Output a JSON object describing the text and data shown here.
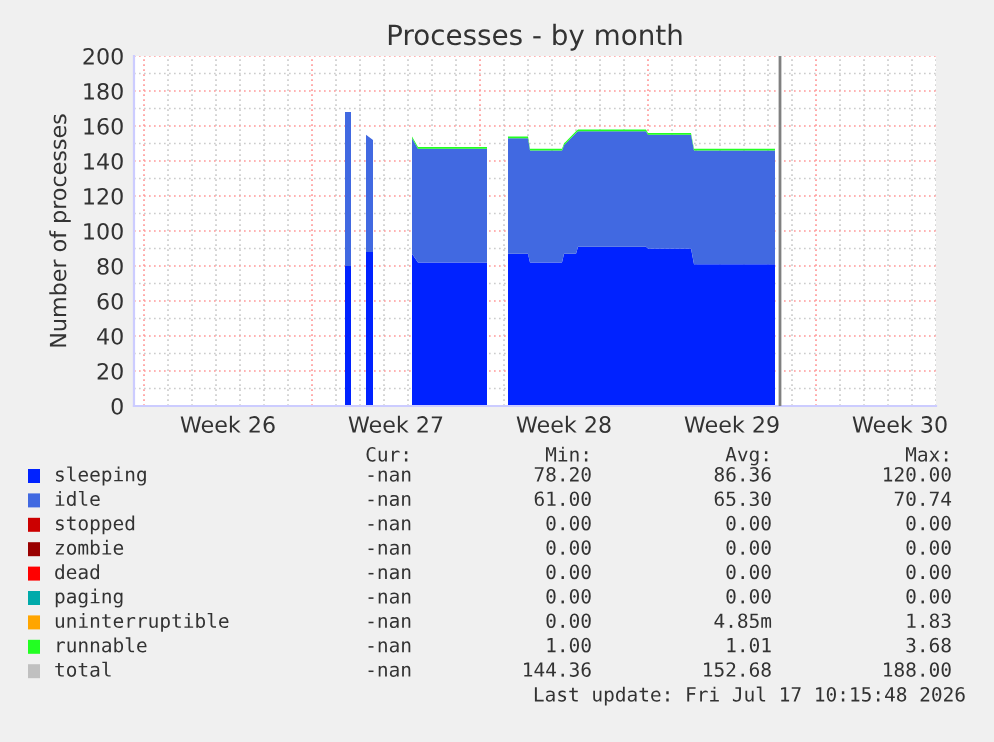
{
  "chart_data": {
    "type": "area",
    "stacked": true,
    "title": "Processes - by month",
    "ylabel": "Number of processes",
    "x": [
      "2026-06-30T09:00",
      "2026-06-30T15:00",
      "2026-06-30T22:00",
      "2026-07-01T06:00",
      "2026-07-01T13:00",
      "2026-07-01T22:00",
      "2026-07-03T04:00",
      "2026-07-03T10:00",
      "2026-07-06T07:00",
      "2026-07-06T17:00",
      "2026-07-07T04:00",
      "2026-07-08T00:00",
      "2026-07-08T02:00",
      "2026-07-09T10:00",
      "2026-07-09T12:00",
      "2026-07-10T00:00",
      "2026-07-10T02:00",
      "2026-07-12T22:00",
      "2026-07-13T00:00",
      "2026-07-14T19:00",
      "2026-07-14T22:00",
      "2026-07-18T07:00"
    ],
    "xlim": [
      "2026-06-21T14:00",
      "2026-07-25T00:00"
    ],
    "xticks": [
      {
        "value": "2026-06-25T12:00",
        "label": "Week 26"
      },
      {
        "value": "2026-07-02T12:00",
        "label": "Week 27"
      },
      {
        "value": "2026-07-09T12:00",
        "label": "Week 28"
      },
      {
        "value": "2026-07-16T12:00",
        "label": "Week 29"
      },
      {
        "value": "2026-07-23T12:00",
        "label": "Week 30"
      }
    ],
    "ylim": [
      0,
      200
    ],
    "yticks": [
      0,
      20,
      40,
      60,
      80,
      100,
      120,
      140,
      160,
      180,
      200
    ],
    "grid": true,
    "legend": "bottom",
    "series": [
      {
        "name": "sleeping",
        "color": "#0022ff",
        "values": [
          80,
          80,
          null,
          88,
          88,
          null,
          87,
          82,
          82,
          null,
          87,
          87,
          82,
          82,
          87,
          87,
          91,
          91,
          90,
          90,
          81,
          81
        ]
      },
      {
        "name": "idle",
        "color": "#4169e1",
        "values": [
          88,
          88,
          null,
          67,
          64,
          null,
          66,
          65,
          65,
          null,
          66,
          66,
          64,
          64,
          62,
          69,
          66,
          66,
          65,
          65,
          65,
          65
        ]
      },
      {
        "name": "stopped",
        "color": "#cc0000",
        "values": [
          null,
          null,
          null,
          null,
          null,
          null,
          null,
          null,
          null,
          null,
          null,
          null,
          null,
          null,
          null,
          null,
          null,
          null,
          null,
          null,
          null,
          null
        ]
      },
      {
        "name": "zombie",
        "color": "#990000",
        "values": [
          null,
          null,
          null,
          null,
          null,
          null,
          null,
          null,
          null,
          null,
          null,
          null,
          null,
          null,
          null,
          null,
          null,
          null,
          null,
          null,
          null,
          null
        ]
      },
      {
        "name": "dead",
        "color": "#ff0000",
        "values": [
          null,
          null,
          null,
          null,
          null,
          null,
          null,
          null,
          null,
          null,
          null,
          null,
          null,
          null,
          null,
          null,
          null,
          null,
          null,
          null,
          null,
          null
        ]
      },
      {
        "name": "paging",
        "color": "#00aaaa",
        "values": [
          null,
          null,
          null,
          null,
          null,
          null,
          null,
          null,
          null,
          null,
          null,
          null,
          null,
          null,
          null,
          null,
          null,
          null,
          null,
          null,
          null,
          null
        ]
      },
      {
        "name": "uninterruptible",
        "color": "#ffa500",
        "values": [
          null,
          null,
          null,
          null,
          null,
          null,
          null,
          null,
          null,
          null,
          null,
          null,
          null,
          null,
          null,
          null,
          null,
          null,
          null,
          null,
          null,
          null
        ]
      },
      {
        "name": "runnable",
        "color": "#22ff22",
        "values": [
          null,
          null,
          null,
          null,
          null,
          null,
          1,
          1,
          1,
          null,
          1,
          1,
          1,
          1,
          1,
          1,
          1,
          1,
          1,
          1,
          1,
          1
        ]
      },
      {
        "name": "total",
        "color": "#c0c0c0",
        "values": [
          null,
          null,
          null,
          null,
          null,
          null,
          null,
          null,
          null,
          null,
          null,
          null,
          null,
          null,
          null,
          null,
          null,
          null,
          null,
          null,
          null,
          null
        ]
      }
    ],
    "ref_lines": [
      {
        "axis": "x",
        "value": "2026-07-18T12:00",
        "color": "#808080"
      }
    ],
    "annotations": [
      "Cur:",
      "Min:",
      "Avg:",
      "Max:",
      "-nan",
      "78.20",
      "86.36",
      "120.00",
      "-nan",
      "61.00",
      "65.30",
      "70.74",
      "-nan",
      "0.00",
      "0.00",
      "0.00",
      "-nan",
      "0.00",
      "0.00",
      "0.00",
      "-nan",
      "0.00",
      "0.00",
      "0.00",
      "-nan",
      "0.00",
      "0.00",
      "0.00",
      "-nan",
      "0.00",
      "4.85m",
      "1.83",
      "-nan",
      "1.00",
      "1.01",
      "3.68",
      "-nan",
      "144.36",
      "152.68",
      "188.00",
      "Last update: Fri Jul 17 10:15:48 2026"
    ]
  }
}
